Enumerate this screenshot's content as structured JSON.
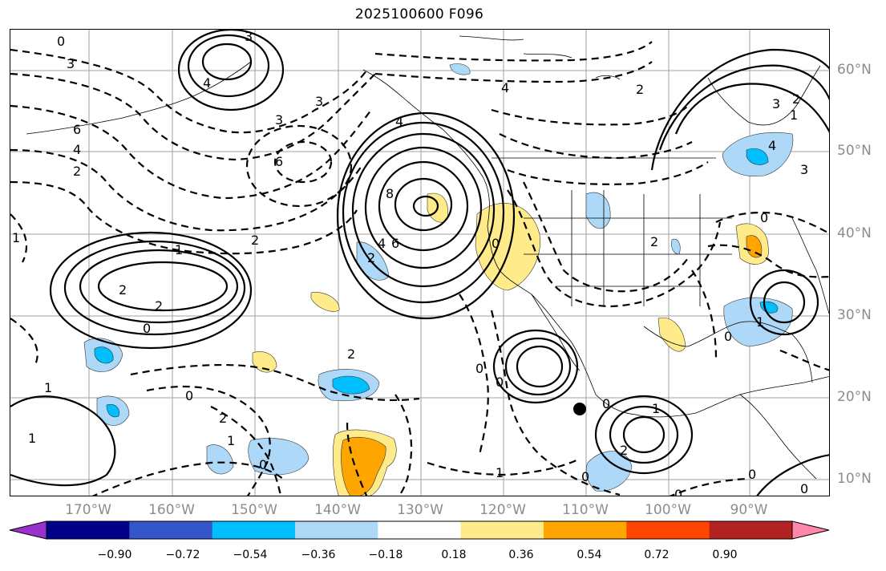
{
  "title": "2025100600 F096",
  "longitude_labels": [
    "170°W",
    "160°W",
    "150°W",
    "140°W",
    "130°W",
    "120°W",
    "110°W",
    "100°W",
    "90°W"
  ],
  "latitude_labels": [
    "60°N",
    "50°N",
    "40°N",
    "30°N",
    "20°N",
    "10°N"
  ],
  "colorbar": {
    "ticks": [
      "−0.90",
      "−0.72",
      "−0.54",
      "−0.36",
      "−0.18",
      "0.18",
      "0.36",
      "0.54",
      "0.72",
      "0.90"
    ],
    "colors": [
      "#9932cc",
      "#00008b",
      "#3456c8",
      "#00bfff",
      "#add8f7",
      "#ffffff",
      "#ffeb8a",
      "#ffa500",
      "#ff4500",
      "#b22222",
      "#ff88aa"
    ]
  },
  "contour_labels": [
    "0",
    "3",
    "3",
    "4",
    "6",
    "4",
    "2",
    "3",
    "3",
    "6",
    "4",
    "4",
    "8",
    "6",
    "4",
    "2",
    "2",
    "0",
    "1",
    "2",
    "2",
    "0",
    "0",
    "0",
    "1",
    "0",
    "0",
    "0",
    "1",
    "2",
    "0",
    "1",
    "1",
    "4",
    "3",
    "2",
    "2",
    "2",
    "0",
    "1",
    "1",
    "0",
    "0",
    "0",
    "0",
    "1",
    "3",
    "2",
    "2",
    "1"
  ],
  "marker": "black dot",
  "colors": {
    "grid": "#a0a0a0",
    "label_gray": "#8c8c8c",
    "positive_shade": "#ffeb8a",
    "strong_positive_shade": "#ffa500",
    "negative_shade": "#add8f7",
    "strong_negative_shade": "#00bfff"
  }
}
